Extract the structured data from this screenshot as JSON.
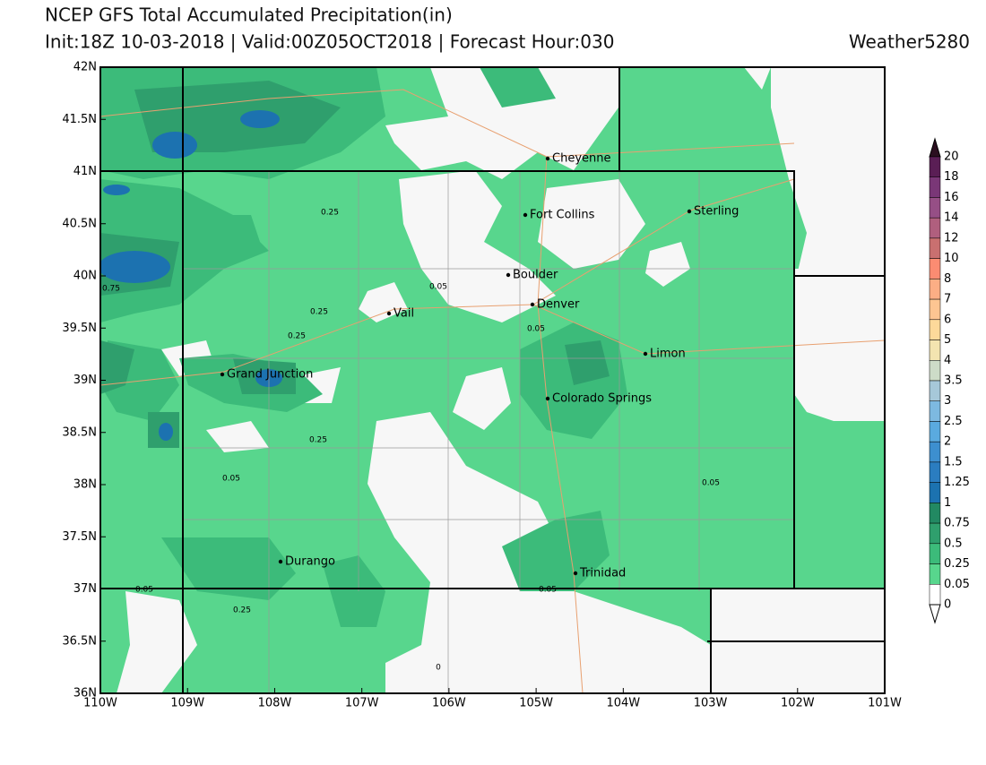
{
  "header": {
    "title": "NCEP GFS Total Accumulated Precipitation(in)",
    "subtitle": "Init:18Z 10-03-2018 | Valid:00Z05OCT2018 | Forecast Hour:030",
    "brand": "Weather5280"
  },
  "axes": {
    "x_labels": [
      "110W",
      "109W",
      "108W",
      "107W",
      "106W",
      "105W",
      "104W",
      "103W",
      "102W",
      "101W"
    ],
    "y_labels": [
      "42N",
      "41.5N",
      "41N",
      "40.5N",
      "40N",
      "39.5N",
      "39N",
      "38.5N",
      "38N",
      "37.5N",
      "37N",
      "36.5N",
      "36N"
    ]
  },
  "cities": [
    "Cheyenne",
    "Fort Collins",
    "Sterling",
    "Boulder",
    "Denver",
    "Vail",
    "Limon",
    "Grand Junction",
    "Colorado Springs",
    "Durango",
    "Trinidad"
  ],
  "contour_labels": [
    "0.25",
    "0.05",
    "0.25",
    "0.25",
    "0.75",
    "0.05",
    "0.25",
    "0.05",
    "0.05",
    "0.05",
    "0.25",
    "0.05",
    "0"
  ],
  "colorbar": {
    "labels": [
      20,
      18,
      16,
      14,
      12,
      10,
      8,
      7,
      6,
      5,
      4,
      3.5,
      3,
      2.5,
      2,
      1.5,
      1.25,
      1,
      0.75,
      0.5,
      0.25,
      0.05,
      0
    ],
    "colors": [
      "#5a1e55",
      "#7a3777",
      "#964f86",
      "#b05f7e",
      "#c97070",
      "#fb8c72",
      "#fcae85",
      "#fdc592",
      "#fdd99a",
      "#f3e4b0",
      "#cddcc8",
      "#a6c8d9",
      "#7db9e0",
      "#5aaadf",
      "#3d8fcf",
      "#2b7dc0",
      "#1c72b0",
      "#228962",
      "#2f9f6d",
      "#3cbb7a",
      "#58d68d",
      "#ffffff"
    ],
    "over_color": "#2b0f20",
    "under_color": "#ffffff"
  }
}
